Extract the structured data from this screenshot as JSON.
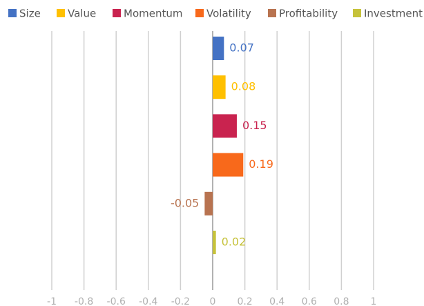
{
  "chart_data": {
    "type": "bar",
    "orientation": "horizontal",
    "series": [
      {
        "name": "Size",
        "color": "#4472c4",
        "values": [
          0.07
        ]
      },
      {
        "name": "Value",
        "color": "#ffc000",
        "values": [
          0.08
        ]
      },
      {
        "name": "Momentum",
        "color": "#c9234f",
        "values": [
          0.15
        ]
      },
      {
        "name": "Volatility",
        "color": "#f8691b",
        "values": [
          0.19
        ]
      },
      {
        "name": "Profitability",
        "color": "#b87350",
        "values": [
          -0.05
        ]
      },
      {
        "name": "Investment",
        "color": "#c6c23a",
        "values": [
          0.02
        ]
      }
    ],
    "xlim": [
      -1,
      1
    ],
    "xticks": [
      -1,
      -0.8,
      -0.6,
      -0.4,
      -0.2,
      0,
      0.2,
      0.4,
      0.6,
      0.8,
      1
    ],
    "grid": true,
    "legend": "top"
  }
}
